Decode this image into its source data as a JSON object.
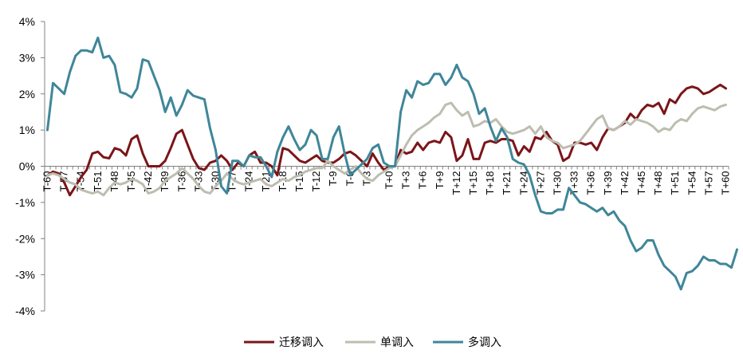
{
  "chart_data": {
    "type": "line",
    "title": "",
    "xlabel": "",
    "ylabel": "",
    "ylim": [
      -4,
      4
    ],
    "yticks": [
      -4,
      -3,
      -2,
      -1,
      0,
      1,
      2,
      3,
      4
    ],
    "ytick_labels": [
      "-4%",
      "-3%",
      "-2%",
      "-1%",
      "0%",
      "1%",
      "2%",
      "3%",
      "4%"
    ],
    "x_start": -60,
    "x_end": 60,
    "xtick_labels": [
      "T-60",
      "T-57",
      "T-54",
      "T-51",
      "T-48",
      "T-45",
      "T-42",
      "T-39",
      "T-36",
      "T-33",
      "T-30",
      "T-27",
      "T-24",
      "T-21",
      "T-18",
      "T-15",
      "T-12",
      "T-9",
      "T-6",
      "T-3",
      "T+0",
      "T+3",
      "T+6",
      "T+9",
      "T+12",
      "T+15",
      "T+18",
      "T+21",
      "T+24",
      "T+27",
      "T+30",
      "T+33",
      "T+36",
      "T+39",
      "T+42",
      "T+45",
      "T+48",
      "T+51",
      "T+54",
      "T+57",
      "T+60"
    ],
    "legend_position": "bottom",
    "grid": false,
    "series": [
      {
        "name": "迁移调入",
        "color": "#7B1518",
        "values": [
          -0.25,
          -0.15,
          -0.2,
          -0.45,
          -0.8,
          -0.55,
          -0.3,
          -0.1,
          0.35,
          0.4,
          0.25,
          0.22,
          0.5,
          0.45,
          0.3,
          0.75,
          0.85,
          0.35,
          0.0,
          0.0,
          0.0,
          0.15,
          0.5,
          0.9,
          1.0,
          0.6,
          0.2,
          -0.05,
          -0.1,
          0.1,
          0.15,
          0.3,
          0.15,
          -0.1,
          0.1,
          0.0,
          0.3,
          0.4,
          0.1,
          0.1,
          0.0,
          -0.25,
          0.5,
          0.45,
          0.3,
          0.15,
          0.1,
          0.2,
          0.3,
          0.15,
          0.1,
          0.1,
          0.2,
          0.35,
          0.4,
          0.3,
          0.15,
          0.0,
          0.35,
          0.1,
          -0.1,
          0.0,
          0.0,
          0.45,
          0.35,
          0.4,
          0.65,
          0.45,
          0.65,
          0.7,
          0.65,
          0.95,
          0.8,
          0.15,
          0.3,
          0.75,
          0.2,
          0.2,
          0.65,
          0.7,
          0.65,
          0.75,
          0.75,
          0.7,
          0.3,
          0.55,
          0.4,
          0.8,
          0.75,
          0.95,
          0.7,
          0.6,
          0.15,
          0.25,
          0.65,
          0.65,
          0.6,
          0.65,
          0.45,
          0.8,
          1.05,
          1.0,
          1.1,
          1.2,
          1.45,
          1.3,
          1.55,
          1.7,
          1.65,
          1.75,
          1.45,
          1.85,
          1.75,
          2.0,
          2.15,
          2.2,
          2.15,
          2.0,
          2.05,
          2.15,
          2.25,
          2.15
        ]
      },
      {
        "name": "单调入",
        "color": "#BDBDB0",
        "values": [
          -0.25,
          -0.2,
          -0.25,
          -0.35,
          -0.45,
          -0.5,
          -0.65,
          -0.7,
          -0.75,
          -0.7,
          -0.8,
          -0.6,
          -0.45,
          -0.5,
          -0.45,
          -0.35,
          -0.4,
          -0.5,
          -0.75,
          -0.7,
          -0.6,
          -0.4,
          -0.3,
          -0.2,
          -0.05,
          -0.2,
          -0.35,
          -0.55,
          -0.7,
          -0.75,
          -0.55,
          -0.4,
          -0.2,
          -0.35,
          -0.45,
          -0.5,
          -0.45,
          -0.4,
          -0.35,
          -0.5,
          -0.55,
          -0.45,
          -0.35,
          -0.4,
          -0.3,
          -0.25,
          -0.15,
          -0.1,
          -0.05,
          -0.05,
          0.15,
          0.0,
          -0.1,
          -0.2,
          -0.1,
          0.0,
          -0.2,
          -0.35,
          -0.4,
          -0.25,
          -0.15,
          -0.05,
          0.0,
          0.3,
          0.6,
          0.85,
          1.0,
          1.1,
          1.2,
          1.35,
          1.45,
          1.7,
          1.75,
          1.55,
          1.4,
          1.5,
          1.1,
          1.15,
          1.25,
          1.2,
          1.3,
          1.1,
          0.95,
          0.9,
          0.95,
          1.0,
          1.1,
          0.9,
          1.1,
          0.8,
          0.7,
          0.65,
          0.5,
          0.55,
          0.6,
          0.7,
          0.9,
          1.1,
          1.3,
          1.4,
          1.05,
          1.0,
          1.1,
          1.25,
          1.15,
          1.3,
          1.25,
          1.2,
          1.1,
          0.95,
          1.05,
          1.0,
          1.2,
          1.3,
          1.25,
          1.45,
          1.6,
          1.65,
          1.6,
          1.55,
          1.65,
          1.7
        ]
      },
      {
        "name": "多调入",
        "color": "#3F8699",
        "values": [
          1.0,
          2.3,
          2.15,
          2.0,
          2.6,
          3.05,
          3.2,
          3.2,
          3.15,
          3.55,
          3.0,
          3.05,
          2.8,
          2.05,
          2.0,
          1.9,
          2.15,
          2.95,
          2.9,
          2.5,
          2.1,
          1.5,
          1.9,
          1.4,
          1.7,
          2.1,
          1.95,
          1.9,
          1.85,
          1.05,
          0.45,
          -0.55,
          -0.75,
          0.15,
          0.15,
          0.0,
          0.3,
          0.25,
          0.25,
          0.0,
          -0.3,
          0.4,
          0.8,
          1.1,
          0.75,
          0.45,
          0.6,
          1.0,
          0.85,
          0.2,
          0.2,
          0.8,
          1.1,
          0.35,
          -0.25,
          -0.1,
          0.05,
          0.2,
          0.5,
          0.6,
          0.1,
          0.0,
          0.0,
          1.5,
          2.1,
          1.9,
          2.35,
          2.25,
          2.3,
          2.55,
          2.55,
          2.25,
          2.45,
          2.8,
          2.45,
          2.35,
          2.0,
          1.45,
          1.6,
          1.1,
          0.7,
          1.05,
          0.8,
          0.2,
          0.1,
          0.05,
          -0.25,
          -0.8,
          -1.25,
          -1.3,
          -1.3,
          -1.2,
          -1.2,
          -0.6,
          -0.8,
          -1.0,
          -1.05,
          -1.15,
          -1.25,
          -1.15,
          -1.35,
          -1.25,
          -1.5,
          -1.65,
          -2.05,
          -2.35,
          -2.25,
          -2.05,
          -2.05,
          -2.45,
          -2.75,
          -2.9,
          -3.05,
          -3.4,
          -2.95,
          -2.9,
          -2.75,
          -2.5,
          -2.6,
          -2.6,
          -2.7,
          -2.7,
          -2.8,
          -2.3
        ]
      }
    ]
  }
}
